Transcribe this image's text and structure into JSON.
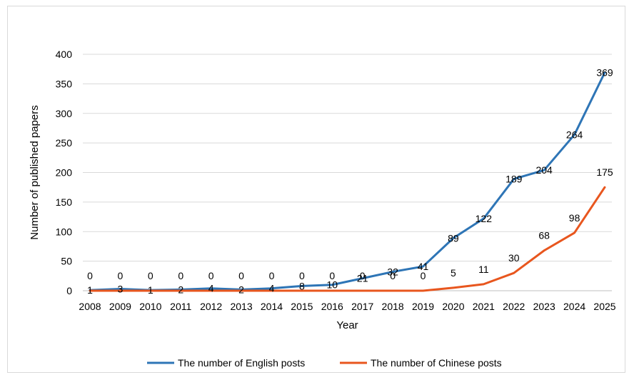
{
  "chart_data": {
    "type": "line",
    "xlabel": "Year",
    "ylabel": "Number of published papers",
    "ylim": [
      0,
      400
    ],
    "yticks": [
      0,
      50,
      100,
      150,
      200,
      250,
      300,
      350,
      400
    ],
    "grid": "horizontal",
    "legend": "bottom",
    "categories": [
      "2008",
      "2009",
      "2010",
      "2011",
      "2012",
      "2013",
      "2014",
      "2015",
      "2016",
      "2017",
      "2018",
      "2019",
      "2020",
      "2021",
      "2022",
      "2023",
      "2024",
      "2025"
    ],
    "series": [
      {
        "name": "The number of English posts",
        "color": "#2E75B6",
        "values": [
          1,
          3,
          1,
          2,
          4,
          2,
          4,
          8,
          10,
          21,
          32,
          41,
          89,
          122,
          189,
          204,
          264,
          369
        ]
      },
      {
        "name": "The number of Chinese posts",
        "color": "#E8561E",
        "values": [
          0,
          0,
          0,
          0,
          0,
          0,
          0,
          0,
          0,
          0,
          0,
          0,
          5,
          11,
          30,
          68,
          98,
          175
        ]
      }
    ]
  }
}
